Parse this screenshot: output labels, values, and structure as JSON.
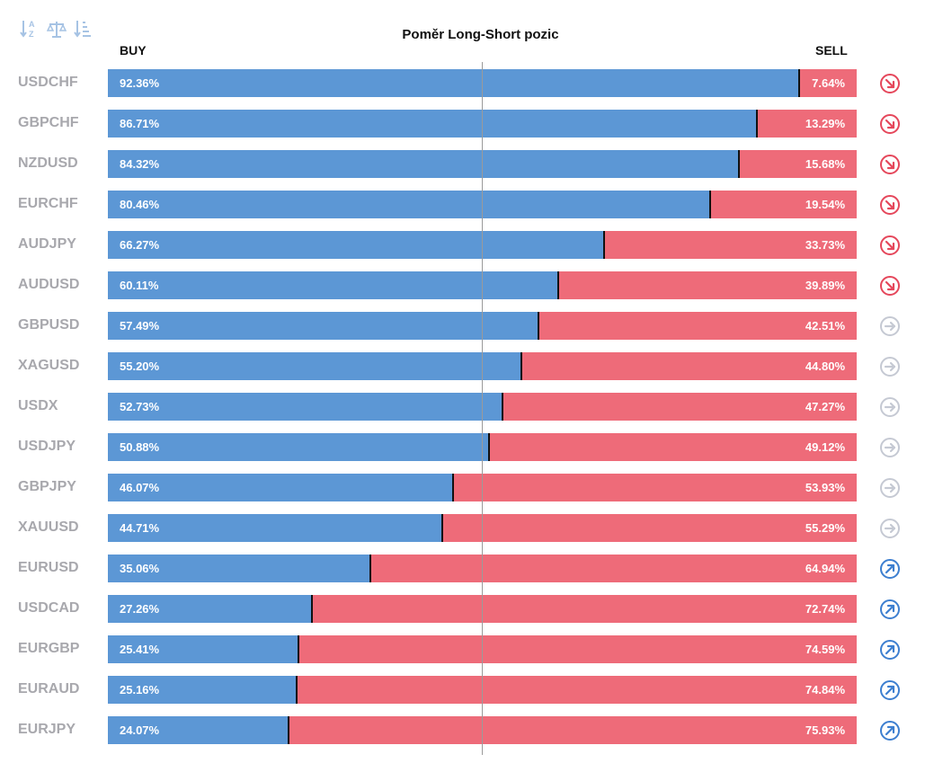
{
  "chart_data": {
    "type": "bar",
    "stacked": true,
    "orientation": "horizontal",
    "title": "Poměr Long-Short pozic",
    "left_label": "BUY",
    "right_label": "SELL",
    "categories": [
      "USDCHF",
      "GBPCHF",
      "NZDUSD",
      "EURCHF",
      "AUDJPY",
      "AUDUSD",
      "GBPUSD",
      "XAGUSD",
      "USDX",
      "USDJPY",
      "GBPJPY",
      "XAUUSD",
      "EURUSD",
      "USDCAD",
      "EURGBP",
      "EURAUD",
      "EURJPY"
    ],
    "series": [
      {
        "name": "BUY",
        "values": [
          92.36,
          86.71,
          84.32,
          80.46,
          66.27,
          60.11,
          57.49,
          55.2,
          52.73,
          50.88,
          46.07,
          44.71,
          35.06,
          27.26,
          25.41,
          25.16,
          24.07
        ]
      },
      {
        "name": "SELL",
        "values": [
          7.64,
          13.29,
          15.68,
          19.54,
          33.73,
          39.89,
          42.51,
          44.8,
          47.27,
          49.12,
          53.93,
          55.29,
          64.94,
          72.74,
          74.59,
          74.84,
          75.93
        ]
      }
    ],
    "buy_labels": [
      "92.36%",
      "86.71%",
      "84.32%",
      "80.46%",
      "66.27%",
      "60.11%",
      "57.49%",
      "55.20%",
      "52.73%",
      "50.88%",
      "46.07%",
      "44.71%",
      "35.06%",
      "27.26%",
      "25.41%",
      "25.16%",
      "24.07%"
    ],
    "sell_labels": [
      "7.64%",
      "13.29%",
      "15.68%",
      "19.54%",
      "33.73%",
      "39.89%",
      "42.51%",
      "44.80%",
      "47.27%",
      "49.12%",
      "53.93%",
      "55.29%",
      "64.94%",
      "72.74%",
      "74.59%",
      "74.84%",
      "75.93%"
    ],
    "trend_icons": [
      "arrow-down-right-icon",
      "arrow-down-right-icon",
      "arrow-down-right-icon",
      "arrow-down-right-icon",
      "arrow-down-right-icon",
      "arrow-down-right-icon",
      "arrow-right-icon",
      "arrow-right-icon",
      "arrow-right-icon",
      "arrow-right-icon",
      "arrow-right-icon",
      "arrow-right-icon",
      "arrow-up-right-icon",
      "arrow-up-right-icon",
      "arrow-up-right-icon",
      "arrow-up-right-icon",
      "arrow-up-right-icon"
    ],
    "xlim": [
      0,
      100
    ],
    "grid": false
  },
  "toolbar": {
    "icons": [
      "sort-alphabetical-icon",
      "balance-scale-icon",
      "sort-descending-icon"
    ]
  },
  "colors": {
    "buy": "#5c97d5",
    "sell": "#ee6b79",
    "trend_down": "#e5475b",
    "trend_neutral": "#c5c9d3",
    "trend_up": "#3d7fd0",
    "symbol_text": "#a8a8ad",
    "toolbar_icon": "#a6c3e4"
  }
}
